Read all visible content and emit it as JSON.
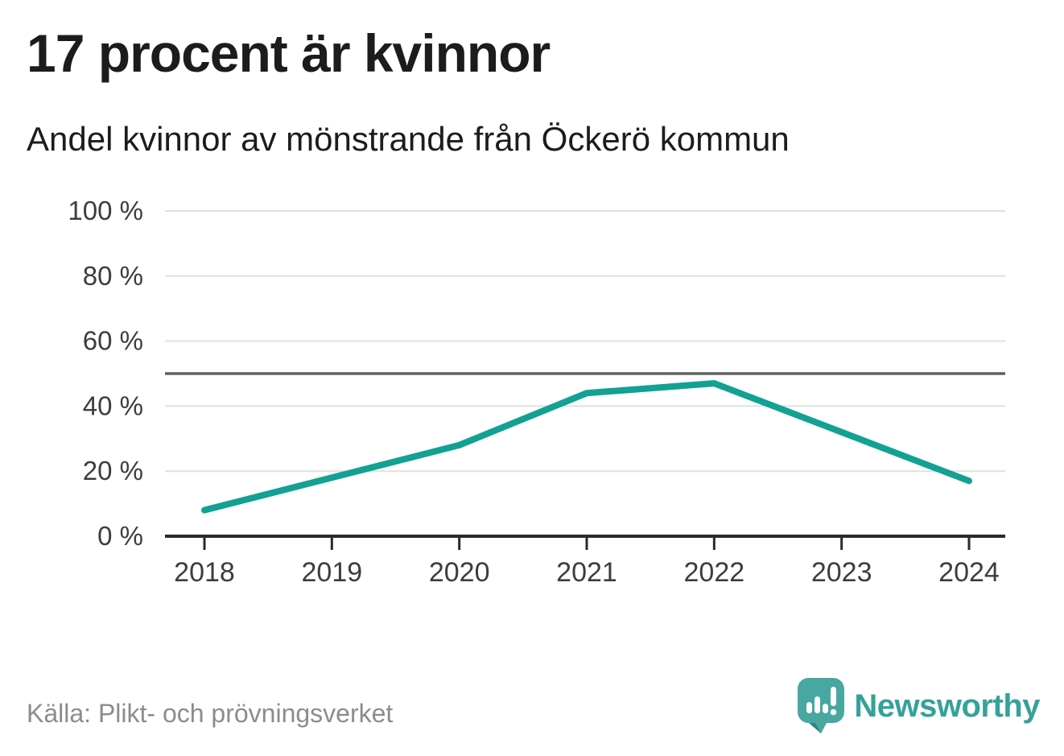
{
  "header": {
    "title": "17 procent är kvinnor",
    "subtitle": "Andel kvinnor av mönstrande från Öckerö kommun"
  },
  "chart_data": {
    "type": "line",
    "title": "17 procent är kvinnor",
    "subtitle": "Andel kvinnor av mönstrande från Öckerö kommun",
    "x": [
      "2018",
      "2019",
      "2020",
      "2021",
      "2022",
      "2023",
      "2024"
    ],
    "series": [
      {
        "name": "Andel kvinnor av mönstrande",
        "values": [
          8,
          18,
          28,
          44,
          47,
          32,
          17
        ],
        "color": "#12a192"
      }
    ],
    "unit": "%",
    "ylim": [
      0,
      100
    ],
    "yticks": [
      0,
      20,
      40,
      60,
      80,
      100
    ],
    "ytick_suffix": " %",
    "reference_line": {
      "value": 50
    },
    "grid": true,
    "legend": "none"
  },
  "footer": {
    "source": "Källa: Plikt- och prövningsverket",
    "brand": "Newsworthy"
  },
  "colors": {
    "line": "#12a192",
    "grid": "#e0e0e0",
    "reference": "#606060",
    "axis": "#2a2a2a",
    "tick_label": "#3d3d3d",
    "title": "#1c1c1b",
    "source": "#8c8c8c",
    "brand_text": "#35a29a",
    "brand_icon": "#48a7a0",
    "brand_icon_shadow": "#2f837e"
  }
}
